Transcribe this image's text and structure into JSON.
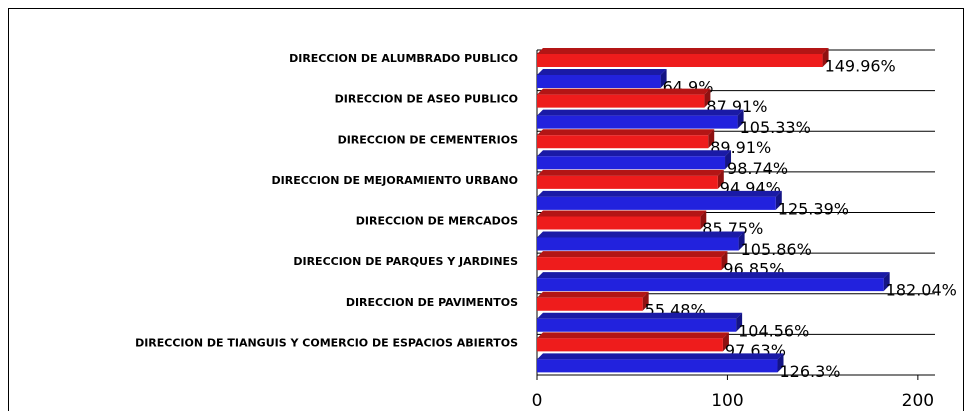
{
  "chart_data": {
    "type": "bar",
    "categories": [
      "DIRECCION DE ALUMBRADO PUBLICO",
      "DIRECCION DE ASEO PUBLICO",
      "DIRECCION DE CEMENTERIOS",
      "DIRECCION DE MEJORAMIENTO URBANO",
      "DIRECCION DE MERCADOS",
      "DIRECCION DE PARQUES Y JARDINES",
      "DIRECCION DE PAVIMENTOS",
      "DIRECCION DE TIANGUIS Y COMERCIO DE ESPACIOS ABIERTOS"
    ],
    "series": [
      {
        "color": "#ee1c1c",
        "values": [
          149.96,
          87.91,
          89.91,
          94.94,
          85.75,
          96.85,
          55.48,
          97.63
        ],
        "value_labels": [
          "149.96%",
          "87.91%",
          "89.91%",
          "94.94%",
          "85.75%",
          "96.85%",
          "55.48%",
          "97.63%"
        ]
      },
      {
        "color": "#2222dd",
        "values": [
          64.9,
          105.33,
          98.74,
          125.39,
          105.86,
          182.04,
          104.56,
          126.3
        ],
        "value_labels": [
          "64.9%",
          "105.33%",
          "98.74%",
          "125.39%",
          "105.86%",
          "182.04%",
          "104.56%",
          "126.3%"
        ]
      }
    ],
    "xlim": [
      0,
      209
    ],
    "xticks": [
      0,
      100,
      200
    ]
  }
}
